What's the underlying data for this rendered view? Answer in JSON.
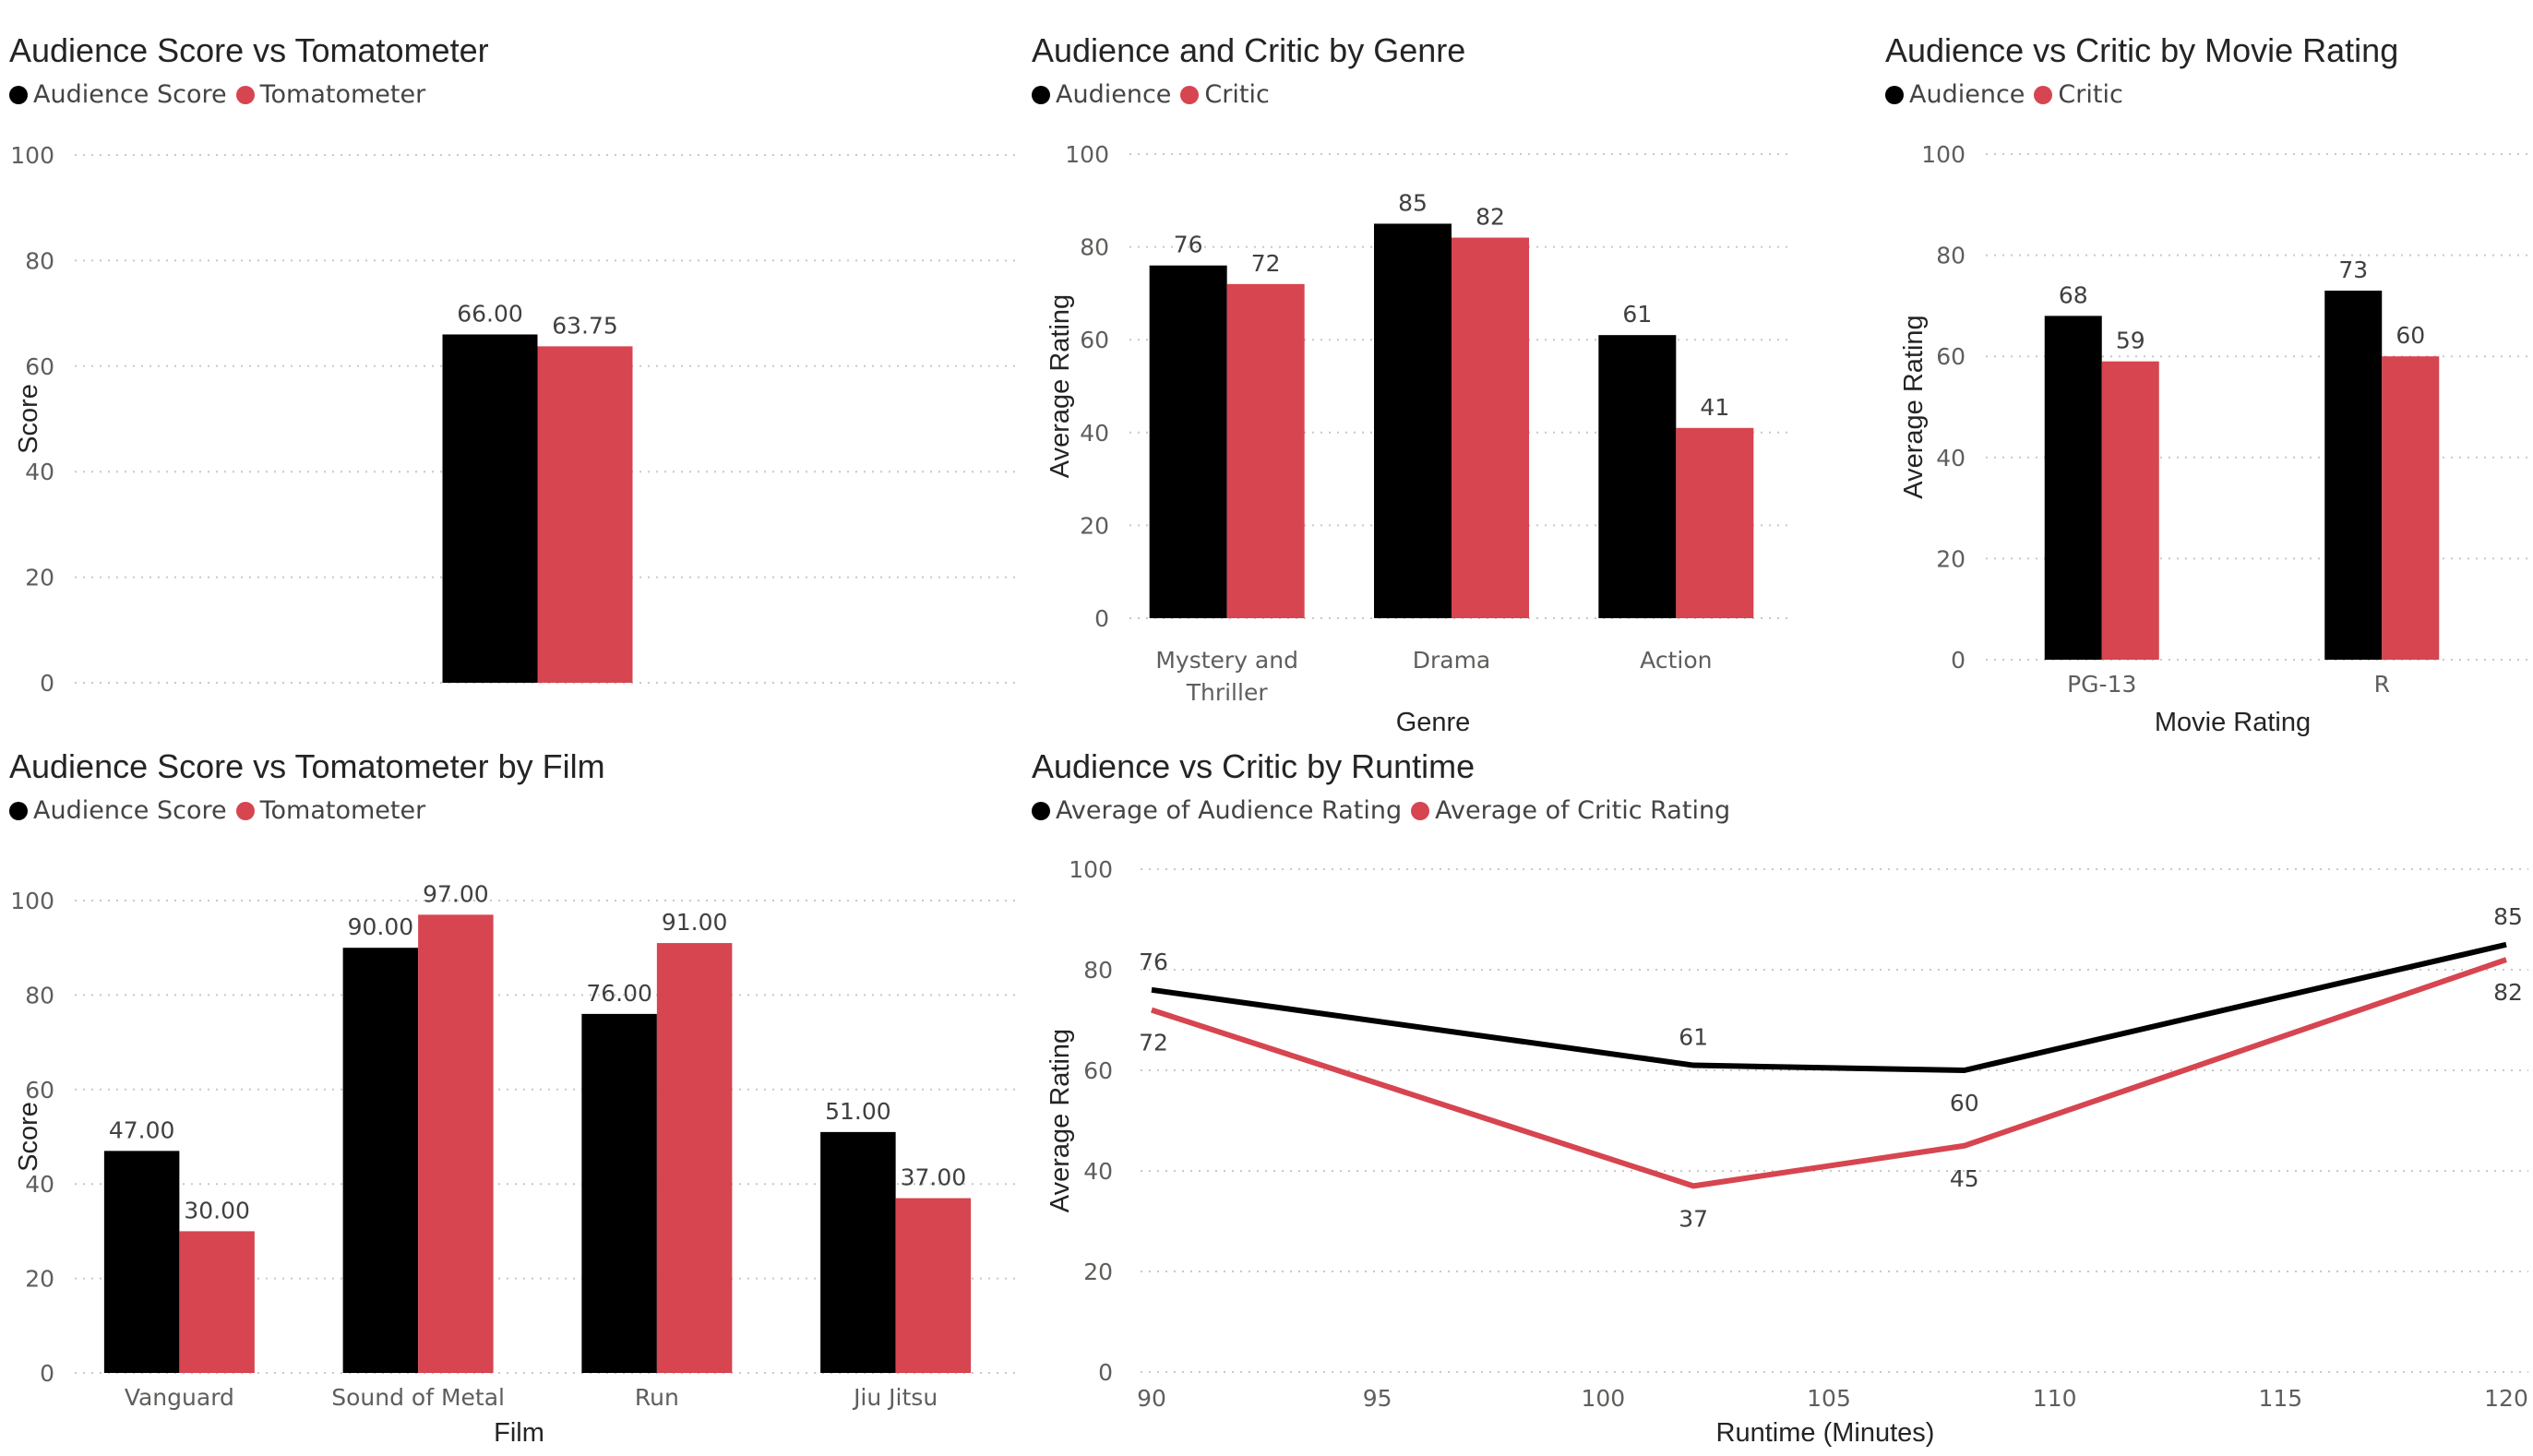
{
  "colors": {
    "audience": "#000000",
    "critic": "#d64550"
  },
  "charts": [
    {
      "id": "c1",
      "title": "Audience Score vs Tomatometer",
      "chart_data": {
        "type": "bar",
        "categories": [
          ""
        ],
        "series": [
          {
            "name": "Audience Score",
            "values": [
              66.0
            ]
          },
          {
            "name": "Tomatometer",
            "values": [
              63.75
            ]
          }
        ],
        "labels": [
          [
            "66.00"
          ],
          [
            "63.75"
          ]
        ],
        "yticks": [
          "0",
          "20",
          "40",
          "60",
          "80",
          "100"
        ],
        "ylim": [
          0,
          100
        ],
        "xlabel": "",
        "ylabel": "Score"
      }
    },
    {
      "id": "c2",
      "title": "Audience and Critic by Genre",
      "chart_data": {
        "type": "bar",
        "categories": [
          [
            "Mystery and",
            "Thriller"
          ],
          [
            "Drama"
          ],
          [
            "Action"
          ]
        ],
        "series": [
          {
            "name": "Audience",
            "values": [
              76,
              85,
              61
            ]
          },
          {
            "name": "Critic",
            "values": [
              72,
              82,
              41
            ]
          }
        ],
        "labels": [
          [
            "76",
            "85",
            "61"
          ],
          [
            "72",
            "82",
            "41"
          ]
        ],
        "yticks": [
          "0",
          "20",
          "40",
          "60",
          "80",
          "100"
        ],
        "ylim": [
          0,
          100
        ],
        "xlabel": "Genre",
        "ylabel": "Average Rating"
      }
    },
    {
      "id": "c3",
      "title": "Audience vs Critic by Movie Rating",
      "chart_data": {
        "type": "bar",
        "categories": [
          [
            "PG-13"
          ],
          [
            "R"
          ]
        ],
        "series": [
          {
            "name": "Audience",
            "values": [
              68,
              73
            ]
          },
          {
            "name": "Critic",
            "values": [
              59,
              60
            ]
          }
        ],
        "labels": [
          [
            "68",
            "73"
          ],
          [
            "59",
            "60"
          ]
        ],
        "yticks": [
          "0",
          "20",
          "40",
          "60",
          "80",
          "100"
        ],
        "ylim": [
          0,
          100
        ],
        "xlabel": "Movie Rating",
        "ylabel": "Average Rating"
      }
    },
    {
      "id": "c4",
      "title": "Audience Score vs Tomatometer by Film",
      "chart_data": {
        "type": "bar",
        "categories": [
          [
            "Vanguard"
          ],
          [
            "Sound of Metal"
          ],
          [
            "Run"
          ],
          [
            "Jiu Jitsu"
          ]
        ],
        "series": [
          {
            "name": "Audience Score",
            "values": [
              47,
              90,
              76,
              51
            ]
          },
          {
            "name": "Tomatometer",
            "values": [
              30,
              97,
              91,
              37
            ]
          }
        ],
        "labels": [
          [
            "47.00",
            "90.00",
            "76.00",
            "51.00"
          ],
          [
            "30.00",
            "97.00",
            "91.00",
            "37.00"
          ]
        ],
        "yticks": [
          "0",
          "20",
          "40",
          "60",
          "80",
          "100"
        ],
        "ylim": [
          0,
          100
        ],
        "xlabel": "Film",
        "ylabel": "Score"
      }
    },
    {
      "id": "c5",
      "title": "Audience vs Critic by Runtime",
      "chart_data": {
        "type": "line",
        "x": [
          90,
          102,
          108,
          120
        ],
        "series": [
          {
            "name": "Average of Audience Rating",
            "values": [
              76,
              61,
              60,
              85
            ]
          },
          {
            "name": "Average of Critic Rating",
            "values": [
              72,
              37,
              45,
              82
            ]
          }
        ],
        "labels": [
          [
            "76",
            "61",
            "60",
            "85"
          ],
          [
            "72",
            "37",
            "45",
            "82"
          ]
        ],
        "xticks": [
          "90",
          "95",
          "100",
          "105",
          "110",
          "115",
          "120"
        ],
        "xlim": [
          90,
          120
        ],
        "yticks": [
          "0",
          "20",
          "40",
          "60",
          "80",
          "100"
        ],
        "ylim": [
          0,
          100
        ],
        "xlabel": "Runtime (Minutes)",
        "ylabel": "Average Rating"
      }
    }
  ]
}
